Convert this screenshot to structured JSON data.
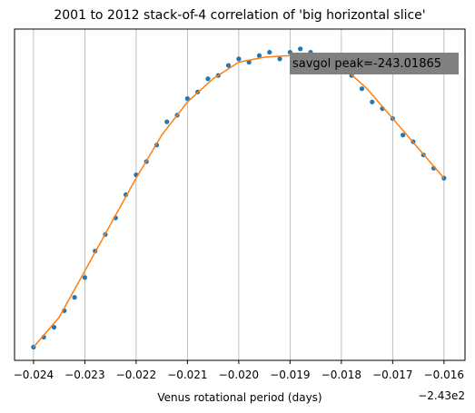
{
  "chart_data": {
    "type": "scatter",
    "title": "2001 to 2012 stack-of-4 correlation of 'big horizontal slice'",
    "xlabel": "Venus rotational period (days)",
    "x_offset_label": "−2.43e2",
    "annotation": "savgol peak=-243.01865",
    "xlim": [
      -0.02437,
      -0.01559
    ],
    "ylim": [
      0,
      1
    ],
    "xticks": [
      {
        "value": -0.024,
        "label": "−0.024"
      },
      {
        "value": -0.023,
        "label": "−0.023"
      },
      {
        "value": -0.022,
        "label": "−0.022"
      },
      {
        "value": -0.021,
        "label": "−0.021"
      },
      {
        "value": -0.02,
        "label": "−0.020"
      },
      {
        "value": -0.019,
        "label": "−0.019"
      },
      {
        "value": -0.018,
        "label": "−0.018"
      },
      {
        "value": -0.017,
        "label": "−0.017"
      },
      {
        "value": -0.016,
        "label": "−0.016"
      }
    ],
    "grid": "x",
    "series": [
      {
        "style": "markers",
        "color": "#1f77b4",
        "x": [
          -0.024,
          -0.0238,
          -0.0236,
          -0.0234,
          -0.0232,
          -0.023,
          -0.0228,
          -0.0226,
          -0.0224,
          -0.0222,
          -0.022,
          -0.0218,
          -0.0216,
          -0.0214,
          -0.0212,
          -0.021,
          -0.0208,
          -0.0206,
          -0.0204,
          -0.0202,
          -0.02,
          -0.0198,
          -0.0196,
          -0.0194,
          -0.0192,
          -0.019,
          -0.0188,
          -0.0186,
          -0.0184,
          -0.0182,
          -0.018,
          -0.0178,
          -0.0176,
          -0.0174,
          -0.0172,
          -0.017,
          -0.0168,
          -0.0166,
          -0.0164,
          -0.0162,
          -0.016
        ],
        "values": [
          0.04,
          0.07,
          0.1,
          0.15,
          0.19,
          0.25,
          0.33,
          0.38,
          0.43,
          0.5,
          0.56,
          0.6,
          0.65,
          0.72,
          0.74,
          0.79,
          0.81,
          0.85,
          0.86,
          0.89,
          0.91,
          0.9,
          0.92,
          0.93,
          0.91,
          0.93,
          0.94,
          0.93,
          0.91,
          0.9,
          0.88,
          0.86,
          0.82,
          0.78,
          0.76,
          0.73,
          0.68,
          0.66,
          0.62,
          0.58,
          0.55
        ]
      },
      {
        "style": "line",
        "color": "#ff7f0e",
        "x": [
          -0.024,
          -0.0235,
          -0.023,
          -0.0225,
          -0.022,
          -0.0215,
          -0.021,
          -0.0205,
          -0.02,
          -0.0195,
          -0.019,
          -0.0185,
          -0.018,
          -0.0175,
          -0.017,
          -0.0165,
          -0.016
        ],
        "values": [
          0.04,
          0.13,
          0.27,
          0.41,
          0.55,
          0.68,
          0.78,
          0.85,
          0.9,
          0.915,
          0.92,
          0.92,
          0.89,
          0.82,
          0.73,
          0.64,
          0.55
        ]
      }
    ]
  }
}
